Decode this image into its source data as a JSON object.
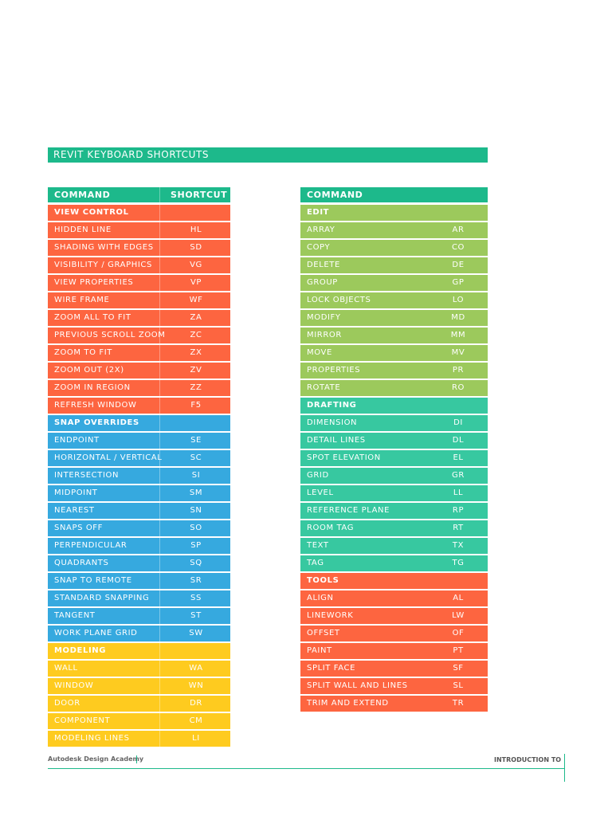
{
  "title": "REVIT KEYBOARD SHORTCUTS",
  "left_table": {
    "headers": [
      "COMMAND",
      "SHORTCUT"
    ],
    "header_color": "#1db98b",
    "sections": [
      {
        "name": "VIEW CONTROL",
        "color": "#fd6540",
        "rows": [
          [
            "HIDDEN LINE",
            "HL"
          ],
          [
            "SHADING WITH EDGES",
            "SD"
          ],
          [
            "VISIBILITY / GRAPHICS",
            "VG"
          ],
          [
            "VIEW PROPERTIES",
            "VP"
          ],
          [
            "WIRE FRAME",
            "WF"
          ],
          [
            "ZOOM ALL TO FIT",
            "ZA"
          ],
          [
            "PREVIOUS SCROLL ZOOM",
            "ZC"
          ],
          [
            "ZOOM TO FIT",
            "ZX"
          ],
          [
            "ZOOM OUT (2X)",
            "ZV"
          ],
          [
            "ZOOM IN REGION",
            "ZZ"
          ],
          [
            "REFRESH WINDOW",
            "F5"
          ]
        ]
      },
      {
        "name": "SNAP OVERRIDES",
        "color": "#36a9df",
        "rows": [
          [
            "ENDPOINT",
            "SE"
          ],
          [
            "HORIZONTAL / VERTICAL",
            "SC"
          ],
          [
            "INTERSECTION",
            "SI"
          ],
          [
            "MIDPOINT",
            "SM"
          ],
          [
            "NEAREST",
            "SN"
          ],
          [
            "SNAPS OFF",
            "SO"
          ],
          [
            "PERPENDICULAR",
            "SP"
          ],
          [
            "QUADRANTS",
            "SQ"
          ],
          [
            "SNAP TO REMOTE",
            "SR"
          ],
          [
            "STANDARD SNAPPING",
            "SS"
          ],
          [
            "TANGENT",
            "ST"
          ],
          [
            "WORK PLANE GRID",
            "SW"
          ]
        ]
      },
      {
        "name": "MODELING",
        "color": "#fecb1f",
        "rows": [
          [
            "WALL",
            "WA"
          ],
          [
            "WINDOW",
            "WN"
          ],
          [
            "DOOR",
            "DR"
          ],
          [
            "COMPONENT",
            "CM"
          ],
          [
            "MODELING LINES",
            "LI"
          ]
        ]
      }
    ]
  },
  "right_table": {
    "headers": [
      "COMMAND"
    ],
    "header_color": "#1db98b",
    "sections": [
      {
        "name": "EDIT",
        "color": "#9cc95c",
        "rows": [
          [
            "ARRAY",
            "AR"
          ],
          [
            "COPY",
            "CO"
          ],
          [
            "DELETE",
            "DE"
          ],
          [
            "GROUP",
            "GP"
          ],
          [
            "LOCK OBJECTS",
            "LO"
          ],
          [
            "MODIFY",
            "MD"
          ],
          [
            "MIRROR",
            "MM"
          ],
          [
            "MOVE",
            "MV"
          ],
          [
            "PROPERTIES",
            "PR"
          ],
          [
            "ROTATE",
            "RO"
          ]
        ]
      },
      {
        "name": "DRAFTING",
        "color": "#37c8a0",
        "rows": [
          [
            "DIMENSION",
            "DI"
          ],
          [
            "DETAIL LINES",
            "DL"
          ],
          [
            "SPOT ELEVATION",
            "EL"
          ],
          [
            "GRID",
            "GR"
          ],
          [
            "LEVEL",
            "LL"
          ],
          [
            "REFERENCE PLANE",
            "RP"
          ],
          [
            "ROOM TAG",
            "RT"
          ],
          [
            "TEXT",
            "TX"
          ],
          [
            "TAG",
            "TG"
          ]
        ]
      },
      {
        "name": "TOOLS",
        "color": "#fd6540",
        "rows": [
          [
            "ALIGN",
            "AL"
          ],
          [
            "LINEWORK",
            "LW"
          ],
          [
            "OFFSET",
            "OF"
          ],
          [
            "PAINT",
            "PT"
          ],
          [
            "SPLIT FACE",
            "SF"
          ],
          [
            "SPLIT WALL AND LINES",
            "SL"
          ],
          [
            "TRIM AND EXTEND",
            "TR"
          ]
        ]
      }
    ]
  },
  "footer": {
    "left": "Autodesk Design Academy",
    "right": "INTRODUCTION TO"
  }
}
